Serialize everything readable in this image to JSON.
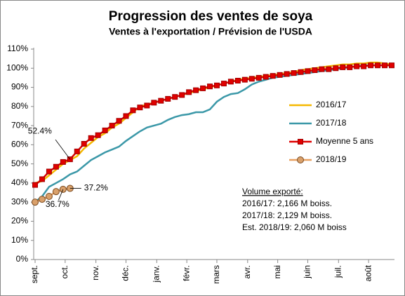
{
  "chart_data": {
    "type": "line",
    "title": "Progression des ventes de soya",
    "subtitle": "Ventes à l'exportation / Prévision de l'USDA",
    "x": [
      0,
      1,
      2,
      3,
      4,
      5,
      6,
      7,
      8,
      9,
      10,
      11,
      12,
      13,
      14,
      15,
      16,
      17,
      18,
      19,
      20,
      21,
      22,
      23,
      24,
      25,
      26,
      27,
      28,
      29,
      30,
      31,
      32,
      33,
      34,
      35,
      36,
      37,
      38,
      39,
      40,
      41,
      42,
      43,
      44,
      45,
      46,
      47,
      48,
      49,
      50,
      51
    ],
    "xlim": [
      0,
      51
    ],
    "xticks": [
      {
        "value": 0,
        "label": "sept."
      },
      {
        "value": 4.3,
        "label": "oct."
      },
      {
        "value": 8.7,
        "label": "nov."
      },
      {
        "value": 13,
        "label": "déc."
      },
      {
        "value": 17.4,
        "label": "janv."
      },
      {
        "value": 21.7,
        "label": "févr."
      },
      {
        "value": 26,
        "label": "mars"
      },
      {
        "value": 30.4,
        "label": "avr."
      },
      {
        "value": 34.7,
        "label": "mai"
      },
      {
        "value": 39,
        "label": "juin"
      },
      {
        "value": 43.4,
        "label": "juil."
      },
      {
        "value": 47.7,
        "label": "août"
      }
    ],
    "ylim": [
      0,
      110
    ],
    "yticks": [
      {
        "value": 0,
        "label": "0%"
      },
      {
        "value": 10,
        "label": "10%"
      },
      {
        "value": 20,
        "label": "20%"
      },
      {
        "value": 30,
        "label": "30%"
      },
      {
        "value": 40,
        "label": "40%"
      },
      {
        "value": 50,
        "label": "50%"
      },
      {
        "value": 60,
        "label": "60%"
      },
      {
        "value": 70,
        "label": "70%"
      },
      {
        "value": 80,
        "label": "80%"
      },
      {
        "value": 90,
        "label": "90%"
      },
      {
        "value": 100,
        "label": "100%"
      },
      {
        "value": 110,
        "label": "110%"
      }
    ],
    "grid": false,
    "series": [
      {
        "name": "2016/17",
        "color": "#f5b800",
        "marker": "none",
        "values": [
          40,
          41,
          44,
          47,
          50,
          52,
          54,
          58,
          61,
          64,
          66,
          69,
          71,
          74,
          77,
          80,
          81,
          82,
          83,
          84,
          85,
          86,
          87,
          88,
          89,
          90,
          91,
          92,
          93,
          94,
          94.5,
          95,
          95.5,
          96,
          96.5,
          97,
          97.5,
          98,
          99,
          99.5,
          100,
          100.5,
          101,
          101.5,
          102,
          102,
          102.5,
          102.5,
          103,
          103,
          102.5,
          102
        ]
      },
      {
        "name": "2017/18",
        "color": "#3b98a8",
        "marker": "none",
        "values": [
          30,
          33,
          38,
          40,
          42,
          44.5,
          46,
          49,
          52,
          54,
          56,
          57.5,
          59,
          62,
          64.5,
          67,
          69,
          70,
          71,
          73,
          74.5,
          75.5,
          76,
          77,
          77,
          78.5,
          82.5,
          85,
          86.5,
          87,
          89,
          91.5,
          93,
          94,
          95,
          95.5,
          96,
          96.5,
          97,
          97.5,
          98,
          98.5,
          99,
          99.5,
          100,
          100.5,
          101,
          101.5,
          101.5,
          101.5,
          101.5,
          101.5
        ]
      },
      {
        "name": "Moyenne 5 ans",
        "color": "#e00000",
        "marker": "square",
        "marker_color": "#e00000",
        "marker_edge": "#a00000",
        "values": [
          39,
          42,
          46,
          48.5,
          51,
          52.4,
          56.5,
          60.5,
          63.5,
          65,
          67.5,
          70,
          72.5,
          75,
          78,
          79.5,
          80.5,
          82,
          83,
          84,
          85,
          86,
          87.5,
          88.5,
          89.5,
          90.5,
          91,
          92,
          93,
          93.5,
          94,
          94.5,
          95,
          95.5,
          96,
          96.5,
          97,
          97.5,
          98,
          98.5,
          99,
          99.5,
          99.5,
          100,
          100.5,
          100.5,
          101,
          101,
          101.5,
          101.5,
          101.5,
          101.5
        ],
        "value_labels": [
          null,
          null,
          null,
          null,
          null,
          "52.4%",
          null,
          null,
          null,
          null,
          null,
          null,
          null,
          null,
          null,
          null,
          null,
          null,
          null,
          null,
          null,
          null,
          null,
          null,
          null,
          null,
          null,
          null,
          null,
          null,
          null,
          null,
          null,
          null,
          null,
          null,
          null,
          null,
          null,
          null,
          null,
          null,
          null,
          null,
          null,
          null,
          null,
          null,
          null,
          null,
          null,
          null
        ]
      },
      {
        "name": "2018/19",
        "color": "#e8a060",
        "marker": "circle",
        "marker_color": "#d9a06a",
        "marker_edge": "#7a4a20",
        "values": [
          30,
          31.5,
          33,
          35.5,
          36.7,
          37.2,
          null,
          null,
          null,
          null,
          null,
          null,
          null,
          null,
          null,
          null,
          null,
          null,
          null,
          null,
          null,
          null,
          null,
          null,
          null,
          null,
          null,
          null,
          null,
          null,
          null,
          null,
          null,
          null,
          null,
          null,
          null,
          null,
          null,
          null,
          null,
          null,
          null,
          null,
          null,
          null,
          null,
          null,
          null,
          null,
          null,
          null
        ],
        "value_labels": [
          null,
          null,
          null,
          null,
          "36.7%",
          "37.2%",
          null,
          null,
          null,
          null,
          null,
          null,
          null,
          null,
          null,
          null,
          null,
          null,
          null,
          null,
          null,
          null,
          null,
          null,
          null,
          null,
          null,
          null,
          null,
          null,
          null,
          null,
          null,
          null,
          null,
          null,
          null,
          null,
          null,
          null,
          null,
          null,
          null,
          null,
          null,
          null,
          null,
          null,
          null,
          null,
          null,
          null
        ]
      }
    ],
    "note": {
      "title": "Volume exporté:",
      "lines": [
        "2016/17: 2,166 M boiss.",
        "2017/18: 2,129 M boiss.",
        "Est. 2018/19: 2,060 M boiss"
      ]
    }
  }
}
